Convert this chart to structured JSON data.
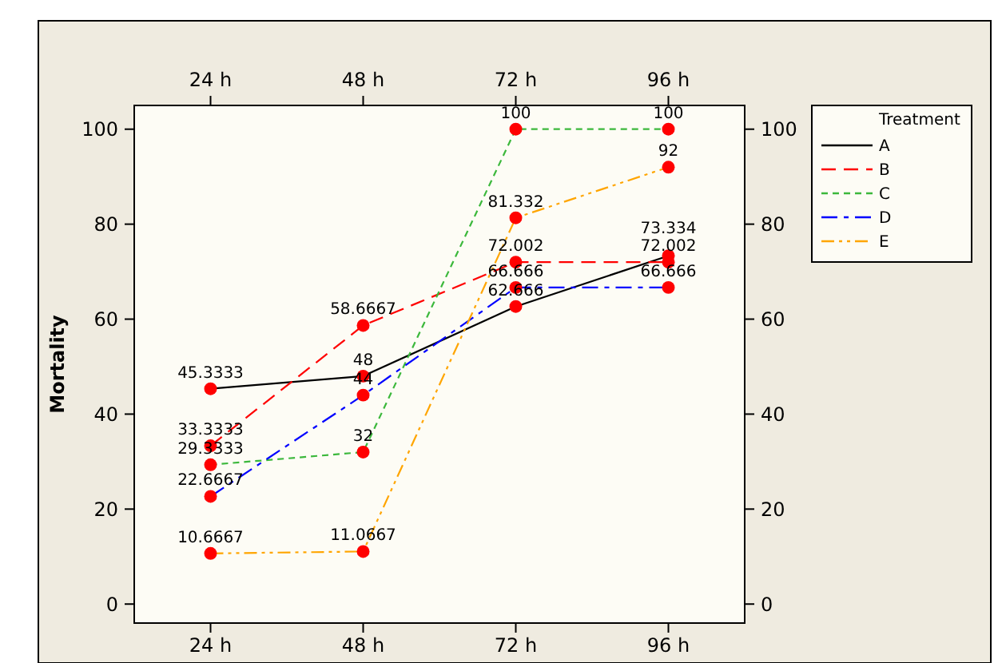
{
  "chart_data": {
    "type": "line",
    "ylabel": "Mortality",
    "legend_title": "Treatment",
    "categories": [
      "24 h",
      "48 h",
      "72 h",
      "96 h"
    ],
    "series": [
      {
        "name": "A",
        "color": "#000000",
        "line_style": "solid",
        "values": [
          45.3333,
          48,
          62.666,
          73.334
        ]
      },
      {
        "name": "B",
        "color": "#ff0000",
        "line_style": "dashed",
        "values": [
          33.3333,
          58.6667,
          72.002,
          72.002
        ]
      },
      {
        "name": "C",
        "color": "#3cb83c",
        "line_style": "dotted",
        "values": [
          29.3333,
          32,
          100,
          100
        ]
      },
      {
        "name": "D",
        "color": "#0000ff",
        "line_style": "dashdot",
        "values": [
          22.6667,
          44,
          66.666,
          66.666
        ]
      },
      {
        "name": "E",
        "color": "#ffa500",
        "line_style": "dashdotdot",
        "values": [
          10.6667,
          11.0667,
          81.332,
          92
        ]
      }
    ],
    "ylim": [
      -4,
      105
    ],
    "yticks": [
      0,
      20,
      40,
      60,
      80,
      100
    ],
    "y2lim": [
      -4,
      105
    ],
    "y2ticks": [
      0,
      20,
      40,
      60,
      80,
      100
    ],
    "marker": "circle",
    "data_labels": true,
    "legend": "top right",
    "grid": false
  }
}
